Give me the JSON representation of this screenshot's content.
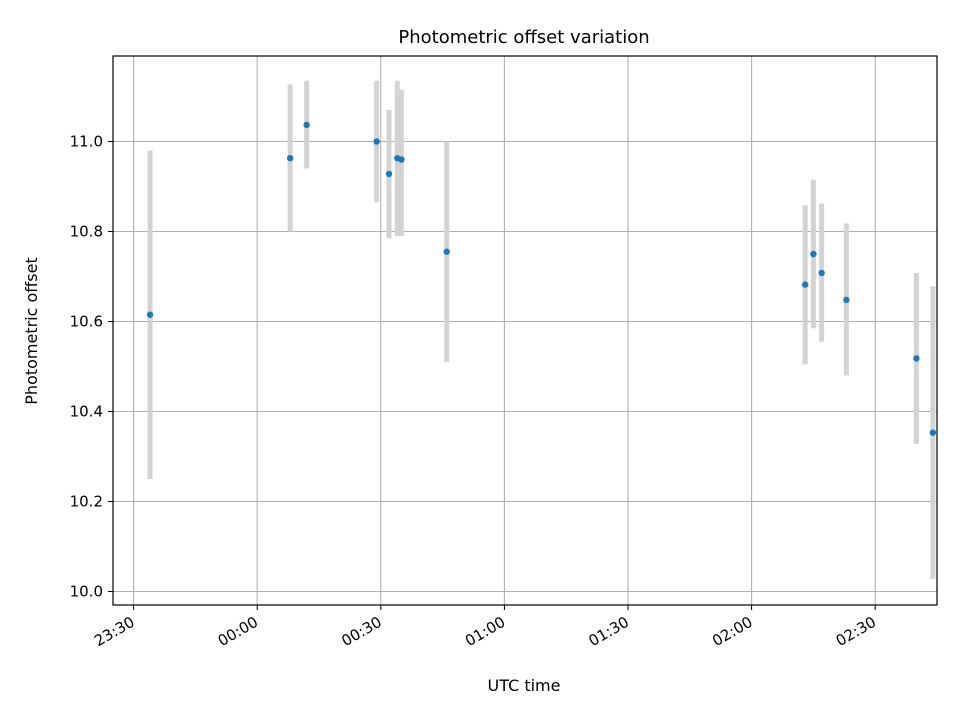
{
  "chart_data": {
    "type": "scatter",
    "title": "Photometric offset variation",
    "xlabel": "UTC time",
    "ylabel": "Photometric offset",
    "x_unit": "UTC time (HH:MM)",
    "xlim": [
      "23:25",
      "02:45"
    ],
    "ylim": [
      9.97,
      11.19
    ],
    "x_ticks": [
      "23:30",
      "00:00",
      "00:30",
      "01:00",
      "01:30",
      "02:00",
      "02:30"
    ],
    "y_ticks": [
      10.0,
      10.2,
      10.4,
      10.6,
      10.8,
      11.0
    ],
    "y_tick_labels": [
      "10.0",
      "10.2",
      "10.4",
      "10.6",
      "10.8",
      "11.0"
    ],
    "grid": true,
    "x_tick_rotation": "30 degrees",
    "marker_color": "#1f77b4",
    "errorbar_color": "#d3d3d3",
    "points": [
      {
        "x": "23:34",
        "y": 10.615,
        "ylow": 10.25,
        "yhigh": 10.98
      },
      {
        "x": "00:08",
        "y": 10.963,
        "ylow": 10.8,
        "yhigh": 11.127
      },
      {
        "x": "00:12",
        "y": 11.037,
        "ylow": 10.94,
        "yhigh": 11.135
      },
      {
        "x": "00:29",
        "y": 11.0,
        "ylow": 10.865,
        "yhigh": 11.135
      },
      {
        "x": "00:32",
        "y": 10.928,
        "ylow": 10.785,
        "yhigh": 11.07
      },
      {
        "x": "00:34",
        "y": 10.963,
        "ylow": 10.79,
        "yhigh": 11.135
      },
      {
        "x": "00:35",
        "y": 10.96,
        "ylow": 10.79,
        "yhigh": 11.115
      },
      {
        "x": "00:46",
        "y": 10.755,
        "ylow": 10.51,
        "yhigh": 11.0
      },
      {
        "x": "02:13",
        "y": 10.682,
        "ylow": 10.505,
        "yhigh": 10.858
      },
      {
        "x": "02:15",
        "y": 10.75,
        "ylow": 10.585,
        "yhigh": 10.915
      },
      {
        "x": "02:17",
        "y": 10.708,
        "ylow": 10.555,
        "yhigh": 10.862
      },
      {
        "x": "02:23",
        "y": 10.648,
        "ylow": 10.48,
        "yhigh": 10.818
      },
      {
        "x": "02:40",
        "y": 10.518,
        "ylow": 10.328,
        "yhigh": 10.708
      },
      {
        "x": "02:44",
        "y": 10.353,
        "ylow": 10.028,
        "yhigh": 10.678
      }
    ]
  }
}
